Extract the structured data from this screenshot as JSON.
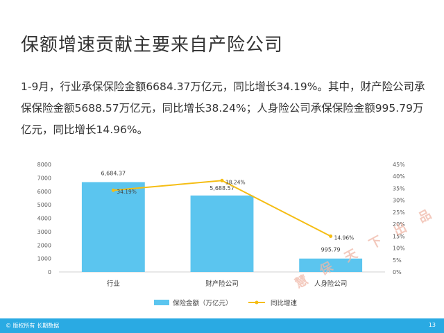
{
  "title": "保额增速贡献主要来自产险公司",
  "description": "1-9月，行业承保保险金额6684.37万亿元，同比增长34.19%。其中，财产险公司承保保险金额5688.57万亿元，同比增长38.24%；人身险公司承保保险金额995.79万亿元，同比增长14.96%。",
  "footer": {
    "copyright": "© 版权所有 长期数据",
    "page_number": "13"
  },
  "watermark": "慧保天下出品",
  "colors": {
    "bar": "#5bc5ef",
    "line": "#f5bd13",
    "footer": "#2aaae3"
  },
  "chart_data": {
    "type": "bar",
    "categories": [
      "行业",
      "财产险公司",
      "人身险公司"
    ],
    "series": [
      {
        "name": "保险金额（万亿元）",
        "type": "bar",
        "axis": "left",
        "values": [
          6684.37,
          5688.57,
          995.79
        ],
        "labels": [
          "6,684.37",
          "5,688.57",
          "995.79"
        ]
      },
      {
        "name": "同比增速",
        "type": "line",
        "axis": "right",
        "values": [
          34.19,
          38.24,
          14.96
        ],
        "labels": [
          "34.19%",
          "38.24%",
          "14.96%"
        ]
      }
    ],
    "y_left": {
      "min": 0,
      "max": 8000,
      "ticks": [
        "0",
        "1000",
        "2000",
        "3000",
        "4000",
        "5000",
        "6000",
        "7000",
        "8000"
      ]
    },
    "y_right": {
      "min": 0,
      "max": 45,
      "ticks": [
        "0%",
        "5%",
        "10%",
        "15%",
        "20%",
        "25%",
        "30%",
        "35%",
        "40%",
        "45%"
      ]
    },
    "grid": false,
    "legend_position": "bottom"
  }
}
